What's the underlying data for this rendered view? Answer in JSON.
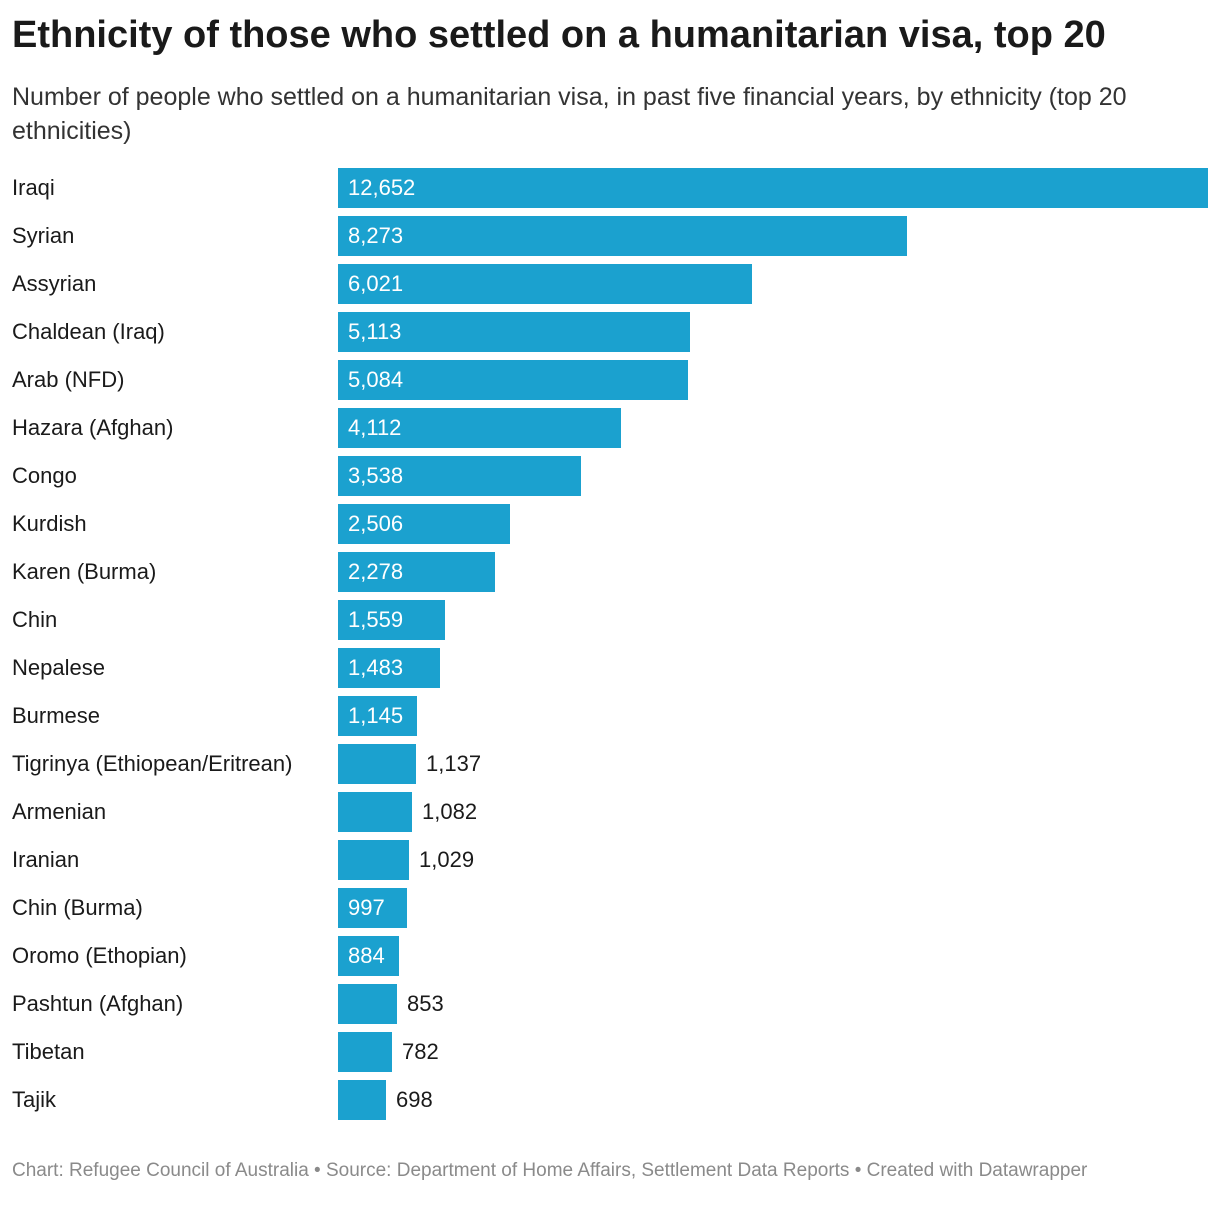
{
  "title": "Ethnicity of those who settled on a humanitarian visa, top 20",
  "subtitle": "Number of people who settled on a humanitarian visa, in past five financial years, by ethnicity (top 20 ethnicities)",
  "footer": "Chart: Refugee Council of Australia • Source: Department of Home Affairs, Settlement Data Reports • Created with Datawrapper",
  "colors": {
    "bar": "#1ba1cf",
    "label_inside": "#ffffff",
    "label_outside": "#1a1a1a"
  },
  "chart_data": {
    "type": "bar",
    "orientation": "horizontal",
    "title": "Ethnicity of those who settled on a humanitarian visa, top 20",
    "xlabel": "",
    "ylabel": "",
    "xlim": [
      0,
      12652
    ],
    "categories": [
      "Iraqi",
      "Syrian",
      "Assyrian",
      "Chaldean (Iraq)",
      "Arab (NFD)",
      "Hazara (Afghan)",
      "Congo",
      "Kurdish",
      "Karen (Burma)",
      "Chin",
      "Nepalese",
      "Burmese",
      "Tigrinya (Ethiopean/Eritrean)",
      "Armenian",
      "Iranian",
      "Chin (Burma)",
      "Oromo (Ethopian)",
      "Pashtun (Afghan)",
      "Tibetan",
      "Tajik"
    ],
    "values": [
      12652,
      8273,
      6021,
      5113,
      5084,
      4112,
      3538,
      2506,
      2278,
      1559,
      1483,
      1145,
      1137,
      1082,
      1029,
      997,
      884,
      853,
      782,
      698
    ],
    "value_labels": [
      "12,652",
      "8,273",
      "6,021",
      "5,113",
      "5,084",
      "4,112",
      "3,538",
      "2,506",
      "2,278",
      "1,559",
      "1,483",
      "1,145",
      "1,137",
      "1,082",
      "1,029",
      "997",
      "884",
      "853",
      "782",
      "698"
    ],
    "label_inside": [
      true,
      true,
      true,
      true,
      true,
      true,
      true,
      true,
      true,
      true,
      true,
      true,
      false,
      false,
      false,
      true,
      true,
      false,
      false,
      false
    ]
  }
}
